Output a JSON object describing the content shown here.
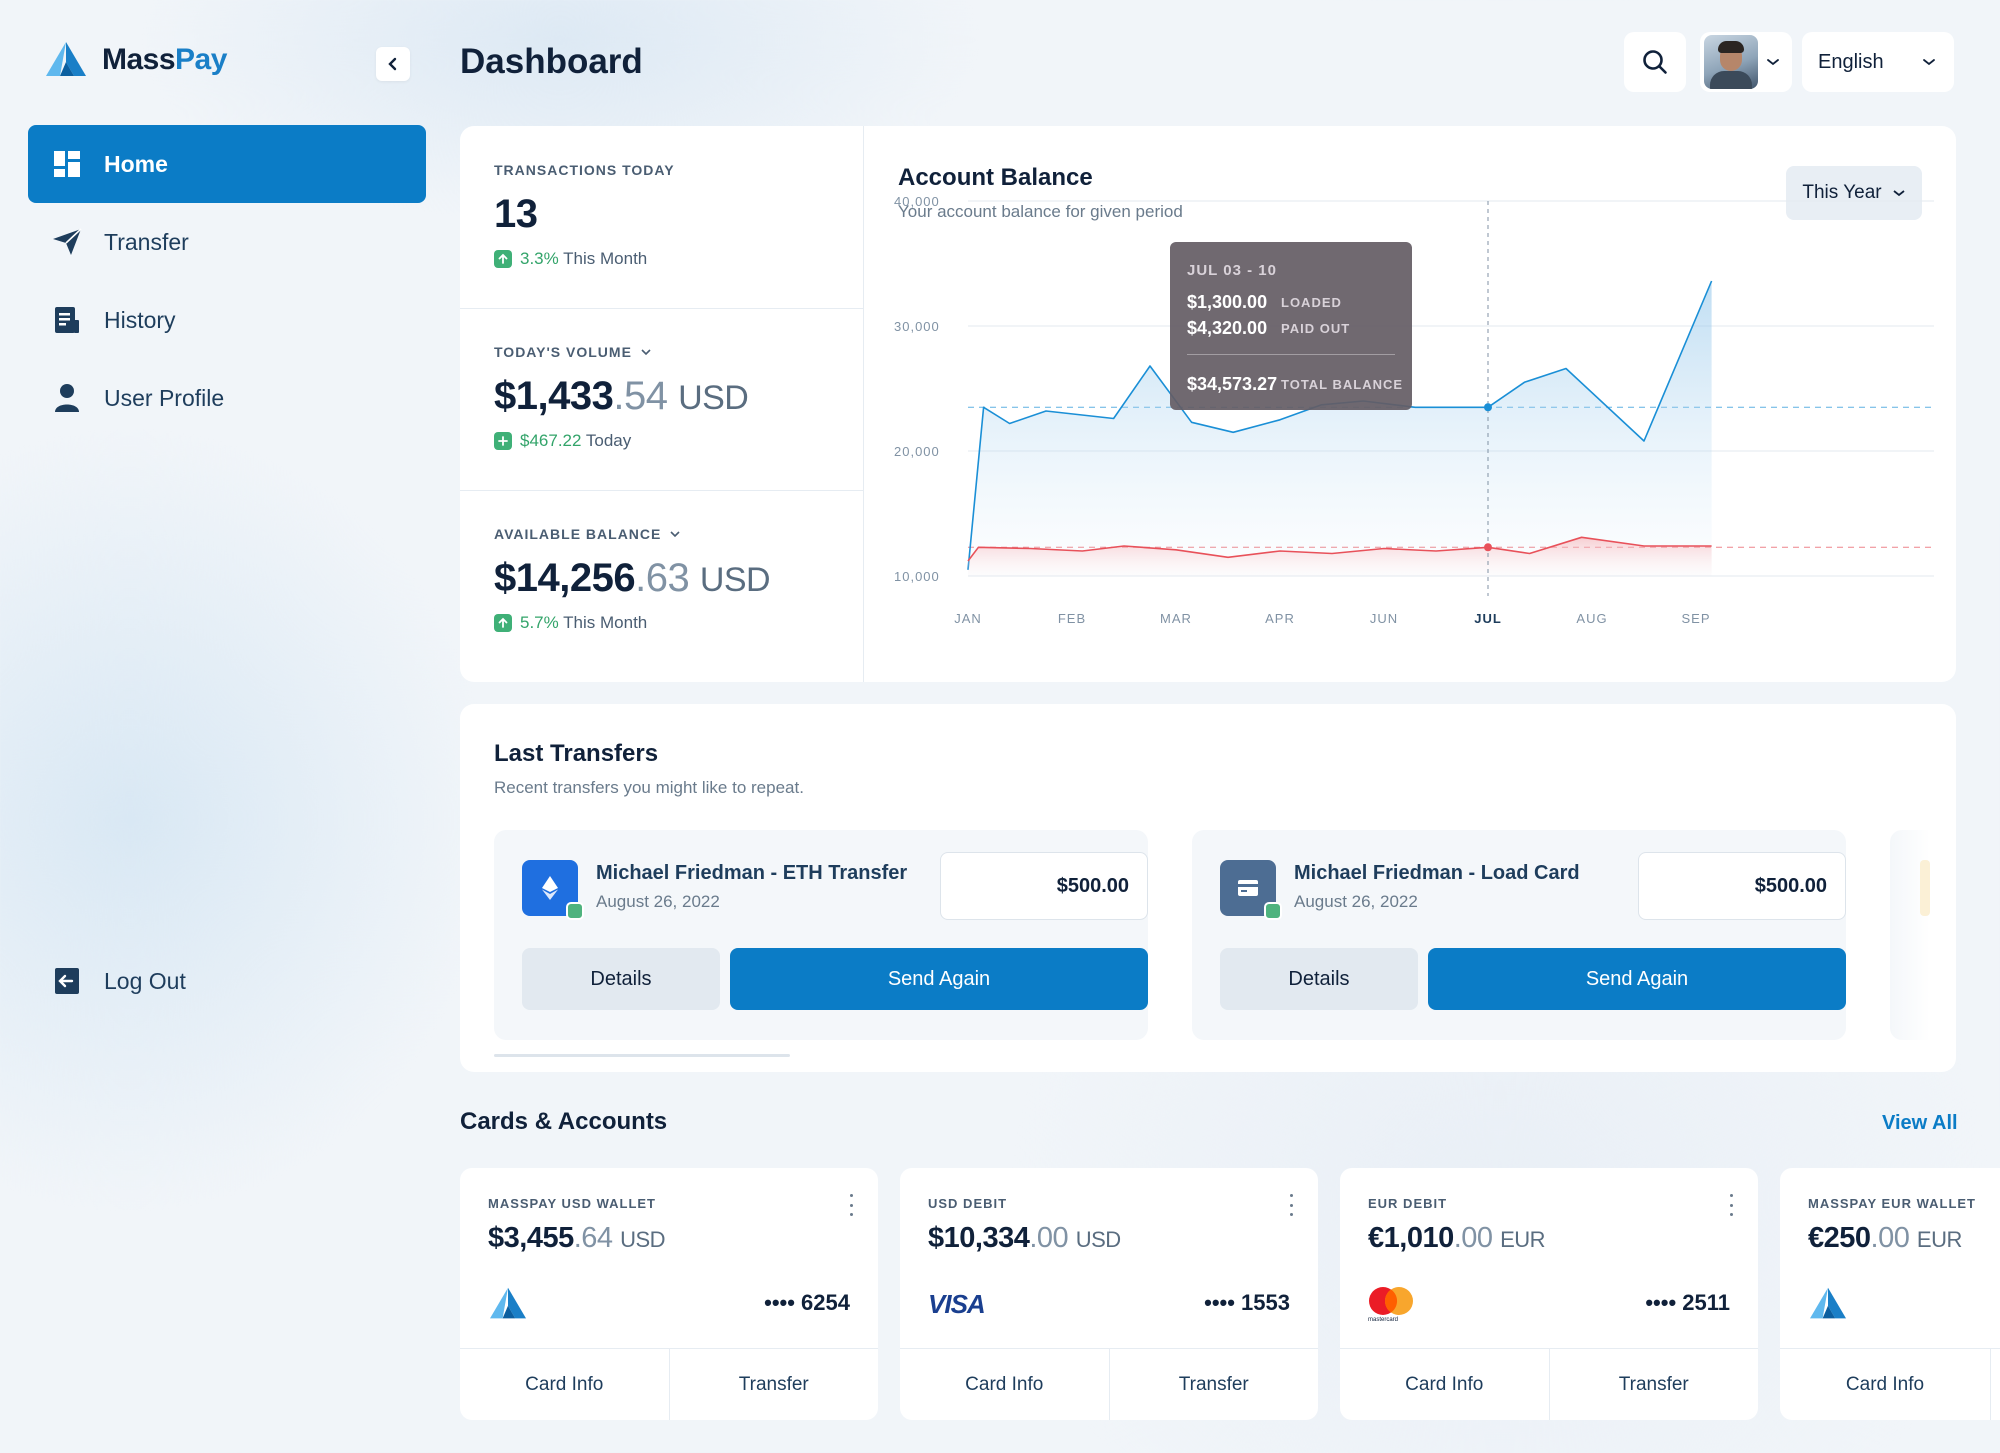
{
  "app": {
    "name_part1": "Mass",
    "name_part2": "Pay"
  },
  "sidebar": {
    "items": [
      {
        "label": "Home",
        "icon": "dashboard-icon",
        "active": true
      },
      {
        "label": "Transfer",
        "icon": "send-icon"
      },
      {
        "label": "History",
        "icon": "history-icon"
      },
      {
        "label": "User Profile",
        "icon": "user-icon"
      }
    ],
    "logout_label": "Log Out"
  },
  "header": {
    "title": "Dashboard",
    "language": "English"
  },
  "stats": {
    "transactions": {
      "label": "TRANSACTIONS TODAY",
      "value": "13",
      "pct": "3.3%",
      "period": "This Month"
    },
    "volume": {
      "label": "TODAY'S VOLUME",
      "value_main": "$1,433",
      "value_dec": ".54",
      "currency": "USD",
      "delta": "$467.22",
      "period": "Today"
    },
    "balance": {
      "label": "AVAILABLE BALANCE",
      "value_main": "$14,256",
      "value_dec": ".63",
      "currency": "USD",
      "pct": "5.7%",
      "period": "This Month"
    }
  },
  "account_balance": {
    "title": "Account Balance",
    "subtitle": "Your account balance for given period",
    "period_button": "This Year",
    "tooltip": {
      "range": "JUL 03 - 10",
      "loaded_value": "$1,300.00",
      "loaded_label": "LOADED",
      "paid_value": "$4,320.00",
      "paid_label": "PAID OUT",
      "total_value": "$34,573.27",
      "total_label": "TOTAL BALANCE"
    }
  },
  "chart_data": {
    "type": "area",
    "title": "Account Balance",
    "y_ticks": [
      "40,000",
      "30,000",
      "20,000",
      "10,000"
    ],
    "ylim": [
      10000,
      40000
    ],
    "x_ticks": [
      "JAN",
      "FEB",
      "MAR",
      "APR",
      "JUN",
      "JUL",
      "AUG",
      "SEP"
    ],
    "highlighted_tick": "JUL",
    "grid": true,
    "series": [
      {
        "color": "#1a8fd6",
        "x": [
          0,
          0.15,
          0.4,
          0.75,
          1.4,
          1.75,
          2.15,
          2.55,
          3.0,
          3.4,
          3.8,
          4.3,
          4.7,
          5.0,
          5.35,
          5.75,
          6.5,
          7.15
        ],
        "values": [
          10500,
          23500,
          22200,
          23200,
          22600,
          26800,
          22300,
          21500,
          22500,
          23700,
          24000,
          23500,
          23500,
          23500,
          25500,
          26600,
          20800,
          33600
        ]
      },
      {
        "color": "#e8515a",
        "x": [
          0,
          0.1,
          0.6,
          1.1,
          1.5,
          2.0,
          2.5,
          3.0,
          3.5,
          4.0,
          4.5,
          5.0,
          5.4,
          5.9,
          6.5,
          7.15
        ],
        "values": [
          11200,
          12300,
          12200,
          12000,
          12400,
          12100,
          11500,
          12000,
          11800,
          12200,
          12000,
          12300,
          11800,
          13100,
          12400,
          12400
        ]
      }
    ],
    "reference_levels": [
      {
        "color": "#1a8fd6",
        "value": 23500
      },
      {
        "color": "#e8515a",
        "value": 12300
      }
    ],
    "marker_x": 5
  },
  "last_transfers": {
    "title": "Last Transfers",
    "subtitle": "Recent transfers you might like to repeat.",
    "items": [
      {
        "name": "Michael Friedman - ETH Transfer",
        "date": "August 26, 2022",
        "amount": "$500.00",
        "details": "Details",
        "send": "Send Again",
        "icon": "ethereum-icon",
        "icon_color": "#1f6fe0"
      },
      {
        "name": "Michael Friedman - Load Card",
        "date": "August 26, 2022",
        "amount": "$500.00",
        "details": "Details",
        "send": "Send Again",
        "icon": "card-icon",
        "icon_color": "#4d6d93"
      }
    ]
  },
  "cards_accounts": {
    "title": "Cards & Accounts",
    "view_all": "View All",
    "items": [
      {
        "label": "MASSPAY USD WALLET",
        "main": "$3,455",
        "dec": ".64",
        "currency": "USD",
        "logo": "masspay-logo",
        "number": "•••• 6254",
        "info": "Card Info",
        "transfer": "Transfer"
      },
      {
        "label": "USD DEBIT",
        "main": "$10,334",
        "dec": ".00",
        "currency": "USD",
        "logo": "visa-logo",
        "logo_text": "VISA",
        "number": "•••• 1553",
        "info": "Card Info",
        "transfer": "Transfer"
      },
      {
        "label": "EUR DEBIT",
        "main": "€1,010",
        "dec": ".00",
        "currency": "EUR",
        "logo": "mastercard-logo",
        "logo_text": "mastercard",
        "number": "•••• 2511",
        "info": "Card Info",
        "transfer": "Transfer"
      },
      {
        "label": "MASSPAY EUR WALLET",
        "main": "€250",
        "dec": ".00",
        "currency": "EUR",
        "logo": "masspay-logo",
        "number": "",
        "info": "Card Info",
        "transfer": ""
      }
    ]
  },
  "colors": {
    "primary": "#0b7cc6",
    "positive": "#3fb077",
    "series_blue": "#1a8fd6",
    "series_red": "#e8515a"
  }
}
